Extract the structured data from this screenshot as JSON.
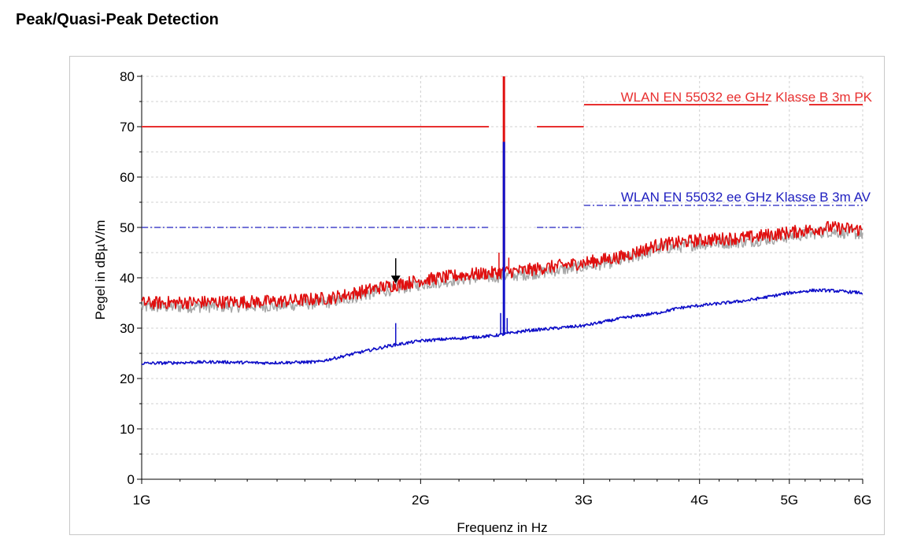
{
  "page": {
    "title": "Peak/Quasi-Peak Detection"
  },
  "chart_data": {
    "type": "line",
    "title": "",
    "xlabel": "Frequenz in Hz",
    "ylabel": "Pegel in dBµV/m",
    "x_scale": "log",
    "xlim_hz": [
      1000000000,
      6000000000
    ],
    "ylim": [
      0,
      80
    ],
    "grid": true,
    "x_ticks": [
      {
        "value_hz": 1000000000,
        "label": "1G"
      },
      {
        "value_hz": 2000000000,
        "label": "2G"
      },
      {
        "value_hz": 3000000000,
        "label": "3G"
      },
      {
        "value_hz": 4000000000,
        "label": "4G"
      },
      {
        "value_hz": 5000000000,
        "label": "5G"
      },
      {
        "value_hz": 6000000000,
        "label": "6G"
      }
    ],
    "y_ticks": [
      0,
      10,
      20,
      30,
      40,
      50,
      60,
      70,
      80
    ],
    "limit_lines": [
      {
        "name": "WLAN EN 55032 ee GHz Klasse B 3m PK",
        "color": "#e83030",
        "style": "solid",
        "level": 70,
        "segments_ghz": [
          [
            1.0,
            2.37
          ],
          [
            2.67,
            3.0
          ]
        ]
      },
      {
        "name": "WLAN EN 55032 ee GHz Klasse B 3m AV",
        "color": "#2020c0",
        "style": "dashdot",
        "level": 50,
        "segments_ghz": [
          [
            1.0,
            2.37
          ],
          [
            2.67,
            3.0
          ]
        ]
      }
    ],
    "series": [
      {
        "color": "#e01010",
        "detector": "peak",
        "points": [
          [
            1.0,
            35.0
          ],
          [
            1.2,
            35.2
          ],
          [
            1.4,
            35.3
          ],
          [
            1.6,
            36.0
          ],
          [
            1.8,
            38.0
          ],
          [
            2.0,
            39.5
          ],
          [
            2.2,
            40.5
          ],
          [
            2.4,
            41.0
          ],
          [
            2.6,
            41.5
          ],
          [
            2.8,
            42.3
          ],
          [
            3.0,
            43.0
          ],
          [
            3.3,
            44.2
          ],
          [
            3.6,
            46.5
          ],
          [
            4.0,
            47.5
          ],
          [
            4.5,
            48.0
          ],
          [
            5.0,
            49.0
          ],
          [
            5.5,
            50.0
          ],
          [
            6.0,
            49.5
          ]
        ],
        "spikes": [
          [
            1.87,
            37.5
          ],
          [
            2.46,
            80
          ],
          [
            2.43,
            45
          ],
          [
            2.49,
            44
          ]
        ]
      },
      {
        "color": "#a8a8a8",
        "detector": "average-trace",
        "points": [
          [
            1.0,
            34.2
          ],
          [
            1.2,
            34.3
          ],
          [
            1.4,
            34.4
          ],
          [
            1.6,
            35.2
          ],
          [
            1.8,
            37.2
          ],
          [
            2.0,
            38.7
          ],
          [
            2.2,
            39.7
          ],
          [
            2.4,
            40.2
          ],
          [
            2.6,
            40.7
          ],
          [
            2.8,
            41.5
          ],
          [
            3.0,
            42.2
          ],
          [
            3.3,
            43.4
          ],
          [
            3.6,
            45.7
          ],
          [
            4.0,
            46.7
          ],
          [
            4.5,
            47.2
          ],
          [
            5.0,
            48.2
          ],
          [
            5.5,
            49.2
          ],
          [
            6.0,
            48.7
          ]
        ]
      },
      {
        "color": "#1010c8",
        "detector": "average",
        "points": [
          [
            1.0,
            23.0
          ],
          [
            1.2,
            23.3
          ],
          [
            1.35,
            23.1
          ],
          [
            1.55,
            23.3
          ],
          [
            1.7,
            25.0
          ],
          [
            1.85,
            26.5
          ],
          [
            2.0,
            27.5
          ],
          [
            2.2,
            28.0
          ],
          [
            2.4,
            28.5
          ],
          [
            2.6,
            29.5
          ],
          [
            2.8,
            30.0
          ],
          [
            3.0,
            30.5
          ],
          [
            3.3,
            32.0
          ],
          [
            3.6,
            33.0
          ],
          [
            3.8,
            34.0
          ],
          [
            4.0,
            34.5
          ],
          [
            4.5,
            35.5
          ],
          [
            5.0,
            37.0
          ],
          [
            5.3,
            37.5
          ],
          [
            5.5,
            37.5
          ],
          [
            6.0,
            37.0
          ]
        ],
        "spikes": [
          [
            1.88,
            31
          ],
          [
            2.46,
            67
          ],
          [
            2.44,
            33
          ],
          [
            2.48,
            32
          ]
        ]
      }
    ],
    "marker": {
      "freq_ghz": 1.88,
      "level": 39.5
    }
  }
}
